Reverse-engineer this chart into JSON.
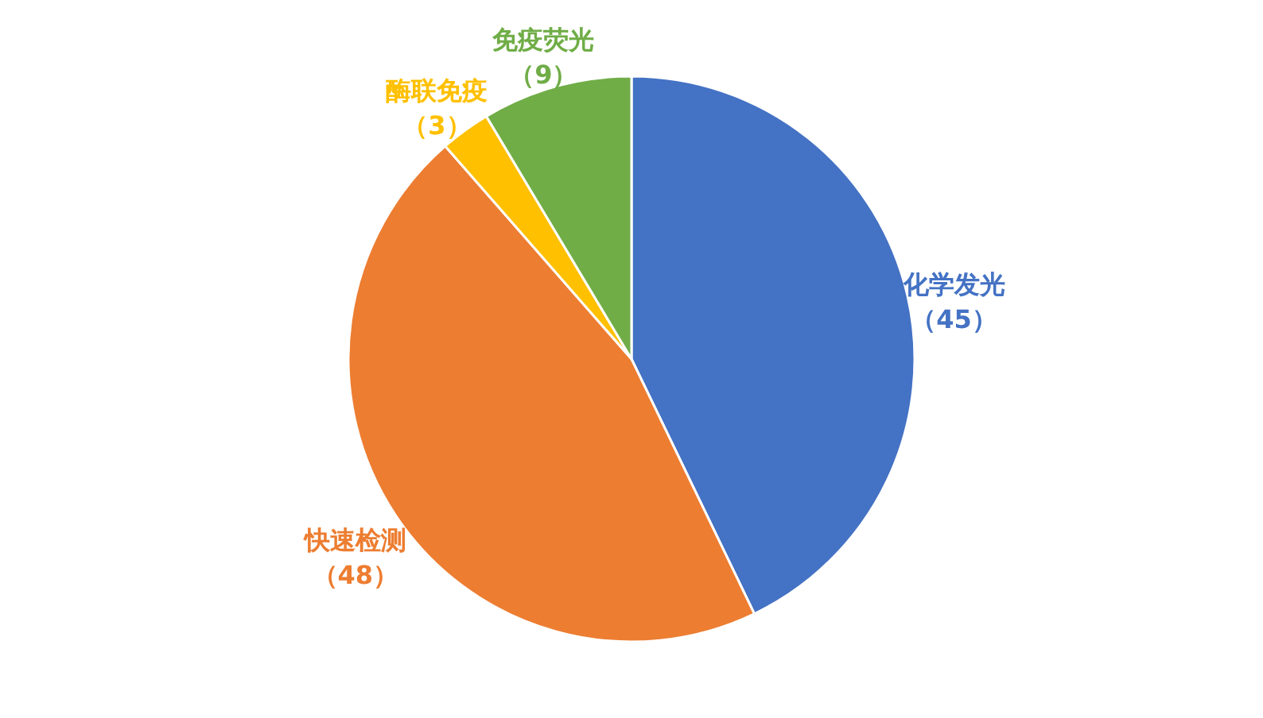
{
  "chart_data": {
    "type": "pie",
    "categories": [
      "化学发光",
      "快速检测",
      "酶联免疫",
      "免疫荧光"
    ],
    "values": [
      45,
      48,
      3,
      9
    ],
    "colors": [
      "#4472c4",
      "#ed7d31",
      "#ffc000",
      "#70ad47"
    ],
    "value_labels": [
      "（45）",
      "（48）",
      "（3）",
      "（9）"
    ]
  }
}
